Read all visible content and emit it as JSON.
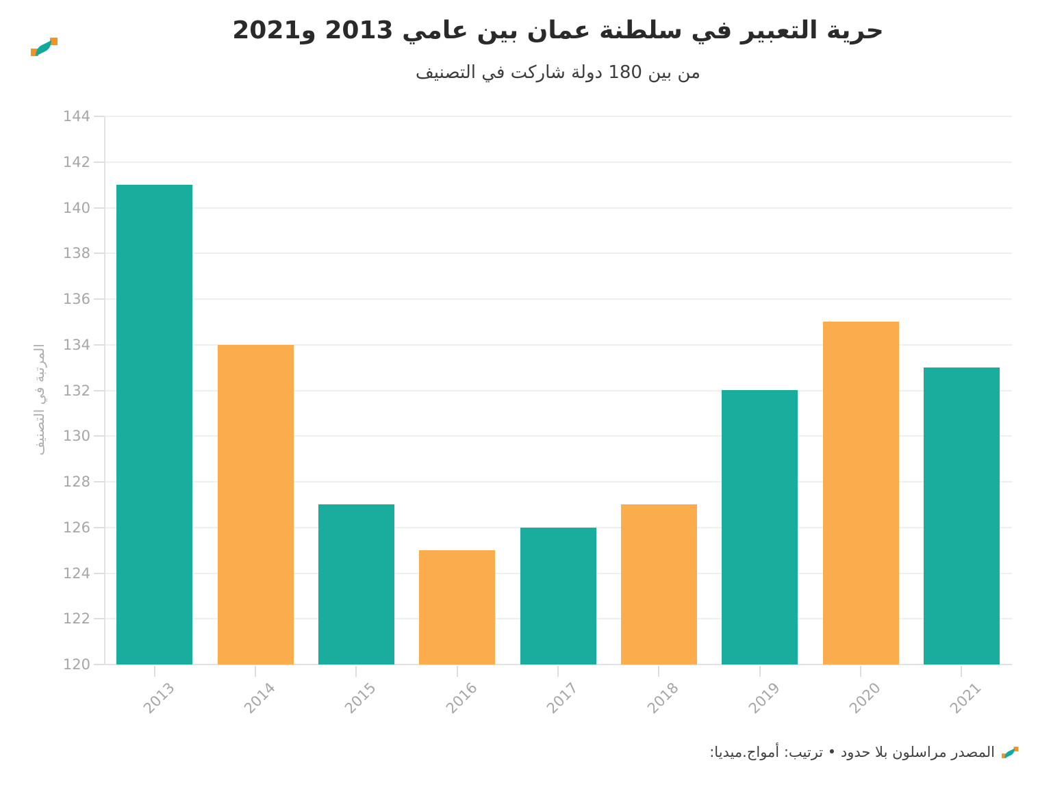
{
  "header": {},
  "brand": {
    "logo_name": "amwaj-media-logo",
    "teal": "#12a99c",
    "orange": "#f7941e"
  },
  "chart_data": {
    "type": "bar",
    "title": "حرية التعبير في سلطنة عمان بين عامي 2013 و2021",
    "subtitle": "من بين 180 دولة شاركت في التصنيف",
    "categories": [
      "2013",
      "2014",
      "2015",
      "2016",
      "2017",
      "2018",
      "2019",
      "2020",
      "2021"
    ],
    "values": [
      141,
      134,
      127,
      125,
      126,
      127,
      132,
      135,
      133
    ],
    "bar_colors_alternating": [
      "#1aac9d",
      "#fbac4d"
    ],
    "xlabel": "",
    "ylabel": "المرتبة في التصنيف",
    "ylim": [
      120,
      144
    ],
    "ytick_step": 2,
    "yticks": [
      120,
      122,
      124,
      126,
      128,
      130,
      132,
      134,
      136,
      138,
      140,
      142,
      144
    ],
    "grid": true,
    "legend": false,
    "x_tick_rotation_deg": -45
  },
  "footer": {
    "source": "المصدر مراسلون بلا حدود • ترتيب: أمواج.ميديا:"
  }
}
